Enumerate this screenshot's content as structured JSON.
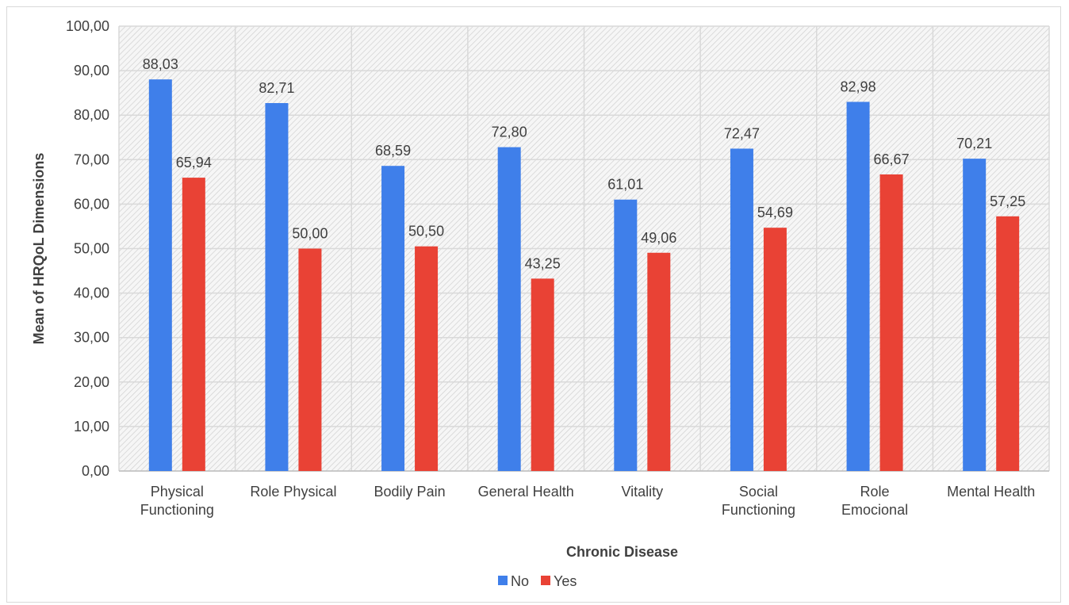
{
  "chart_data": {
    "type": "bar",
    "title": "",
    "xlabel": "Chronic Disease",
    "ylabel": "Mean of HRQoL Dimensions",
    "ylim": [
      0,
      100
    ],
    "ytick_step": 10,
    "ytick_labels": [
      "0,00",
      "10,00",
      "20,00",
      "30,00",
      "40,00",
      "50,00",
      "60,00",
      "70,00",
      "80,00",
      "90,00",
      "100,00"
    ],
    "categories": [
      [
        "Physical",
        "Functioning"
      ],
      [
        "Role Physical"
      ],
      [
        "Bodily Pain"
      ],
      [
        "General Health"
      ],
      [
        "Vitality"
      ],
      [
        "Social",
        "Functioning"
      ],
      [
        "Role",
        "Emocional"
      ],
      [
        "Mental Health"
      ]
    ],
    "series": [
      {
        "name": "No",
        "color": "#3f7fea",
        "values": [
          88.03,
          82.71,
          68.59,
          72.8,
          61.01,
          72.47,
          82.98,
          70.21
        ],
        "labels": [
          "88,03",
          "82,71",
          "68,59",
          "72,80",
          "61,01",
          "72,47",
          "82,98",
          "70,21"
        ]
      },
      {
        "name": "Yes",
        "color": "#e94235",
        "values": [
          65.94,
          50.0,
          50.5,
          43.25,
          49.06,
          54.69,
          66.67,
          57.25
        ],
        "labels": [
          "65,94",
          "50,00",
          "50,50",
          "43,25",
          "49,06",
          "54,69",
          "66,67",
          "57,25"
        ]
      }
    ],
    "grid": true,
    "legend_position": "bottom"
  }
}
